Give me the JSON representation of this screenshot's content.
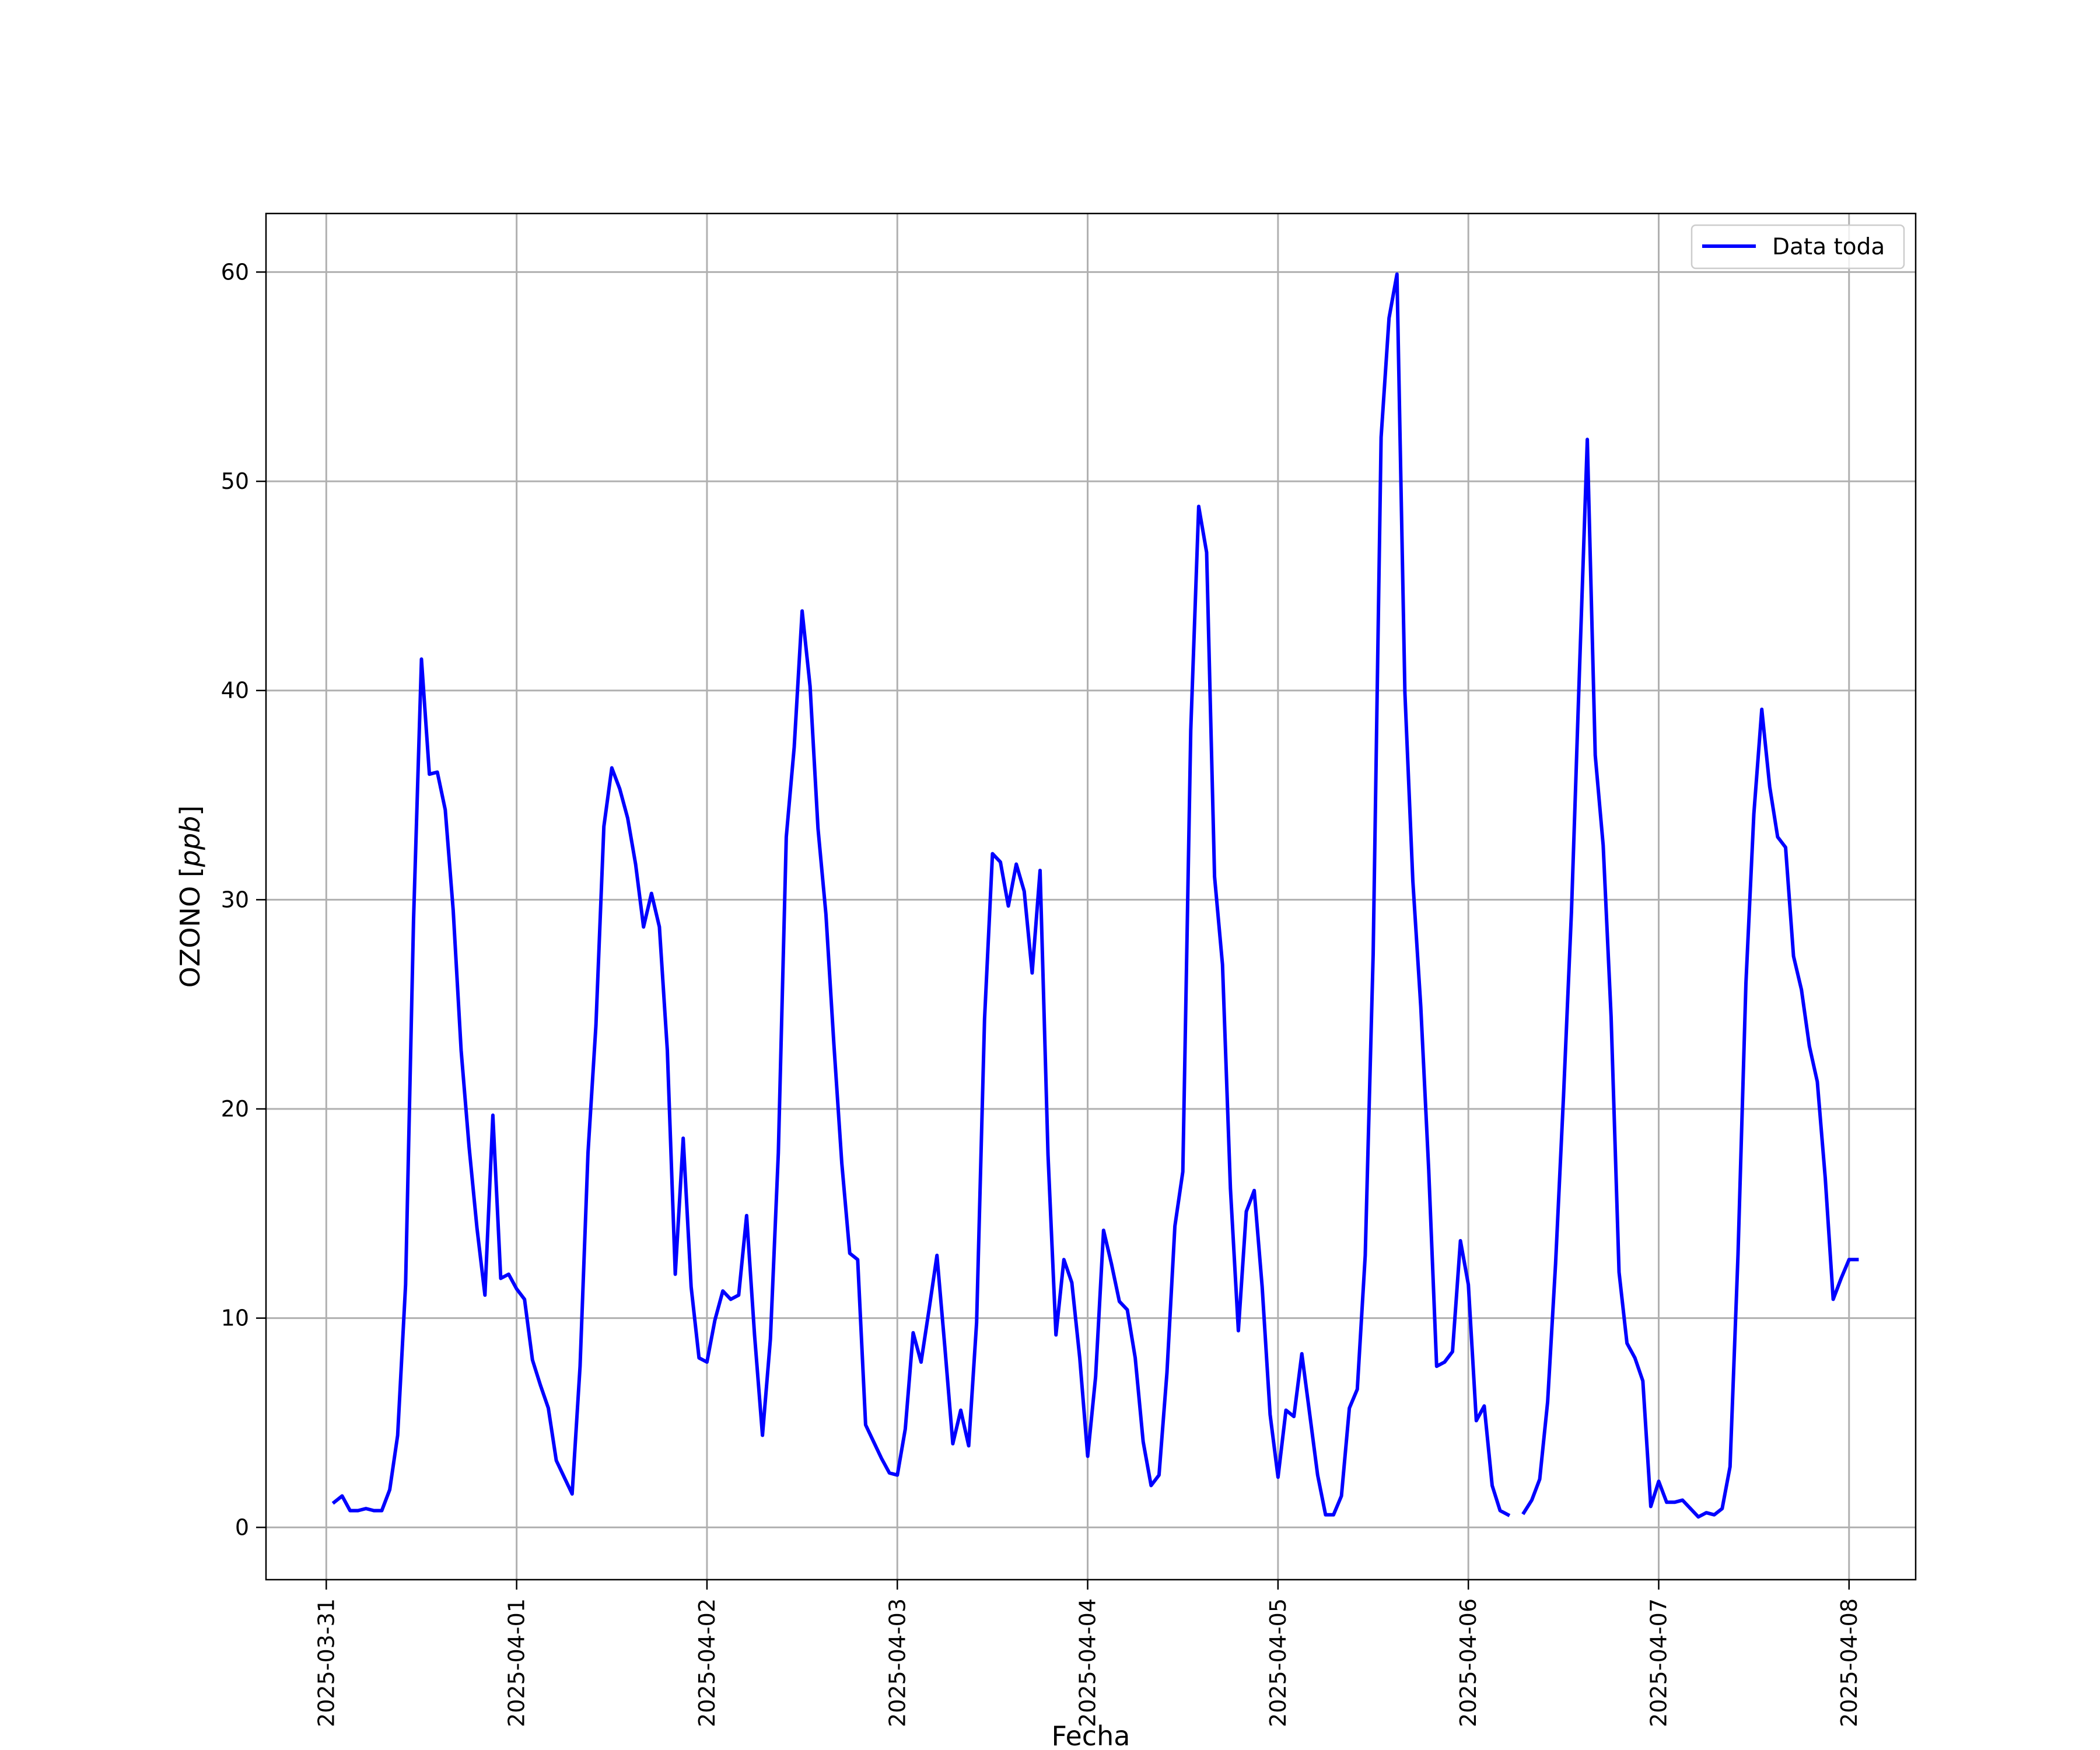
{
  "chart_data": {
    "type": "line",
    "title": "",
    "xlabel": "Fecha",
    "ylabel_main": "OZONO [",
    "ylabel_unit": "ppb",
    "ylabel_close": "]",
    "xlim": [
      "2025-03-30T16:24",
      "2025-04-08T08:24"
    ],
    "ylim": [
      -2.5,
      62.8
    ],
    "x_ticks": [
      "2025-03-31",
      "2025-04-01",
      "2025-04-02",
      "2025-04-03",
      "2025-04-04",
      "2025-04-05",
      "2025-04-06",
      "2025-04-07",
      "2025-04-08"
    ],
    "y_ticks": [
      0,
      10,
      20,
      30,
      40,
      50,
      60
    ],
    "grid": true,
    "legend_position": "top-right",
    "series": [
      {
        "name": "Data toda",
        "color": "#0000ff",
        "start": "2025-03-31T01:00",
        "step_hours": 1,
        "values": [
          1.2,
          1.5,
          0.8,
          0.8,
          0.9,
          0.8,
          0.8,
          1.8,
          4.4,
          11.6,
          29.0,
          41.5,
          36.0,
          36.1,
          34.3,
          29.5,
          22.8,
          18.2,
          14.3,
          11.1,
          19.7,
          11.9,
          12.1,
          11.4,
          10.9,
          8.0,
          6.8,
          5.7,
          3.2,
          2.4,
          1.6,
          7.7,
          17.9,
          24.0,
          33.5,
          36.3,
          35.3,
          33.9,
          31.7,
          28.7,
          30.3,
          28.7,
          22.8,
          12.1,
          18.6,
          11.5,
          8.1,
          7.9,
          9.9,
          11.3,
          10.9,
          11.1,
          14.9,
          9.2,
          4.4,
          9.0,
          17.9,
          33.0,
          37.3,
          43.8,
          40.2,
          33.4,
          29.3,
          23.1,
          17.4,
          13.1,
          12.8,
          4.9,
          4.1,
          3.3,
          2.6,
          2.5,
          4.7,
          9.3,
          7.9,
          10.4,
          13.0,
          8.6,
          4.0,
          5.6,
          3.9,
          9.8,
          24.3,
          32.2,
          31.8,
          29.7,
          31.7,
          30.4,
          26.5,
          31.4,
          17.8,
          9.2,
          12.8,
          11.7,
          8.1,
          3.4,
          7.2,
          14.2,
          12.6,
          10.8,
          10.4,
          8.1,
          4.1,
          2.0,
          2.5,
          7.4,
          14.4,
          17.0,
          38.1,
          48.8,
          46.6,
          31.1,
          26.9,
          16.2,
          9.4,
          15.1,
          16.1,
          11.5,
          5.4,
          2.4,
          5.6,
          5.3,
          8.3,
          5.4,
          2.5,
          0.6,
          0.6,
          1.5,
          5.7,
          6.6,
          13.0,
          27.4,
          52.1,
          57.8,
          59.9,
          39.9,
          30.9,
          24.9,
          17.1,
          7.7,
          7.9,
          8.4,
          13.7,
          11.6,
          5.1,
          5.8,
          2.0,
          0.8,
          0.6,
          null,
          0.7,
          1.3,
          2.3,
          6.0,
          12.6,
          20.6,
          29.4,
          40.8,
          52.0,
          36.9,
          32.6,
          24.4,
          12.2,
          8.8,
          8.1,
          7.0,
          1.0,
          2.2,
          1.2,
          1.2,
          1.3,
          0.9,
          0.5,
          0.7,
          0.6,
          0.9,
          2.9,
          13.0,
          26.0,
          34.1,
          39.1,
          35.4,
          33.0,
          32.5,
          27.3,
          25.7,
          23.0,
          21.3,
          16.7,
          10.9,
          11.9,
          12.8,
          12.8
        ]
      }
    ]
  }
}
